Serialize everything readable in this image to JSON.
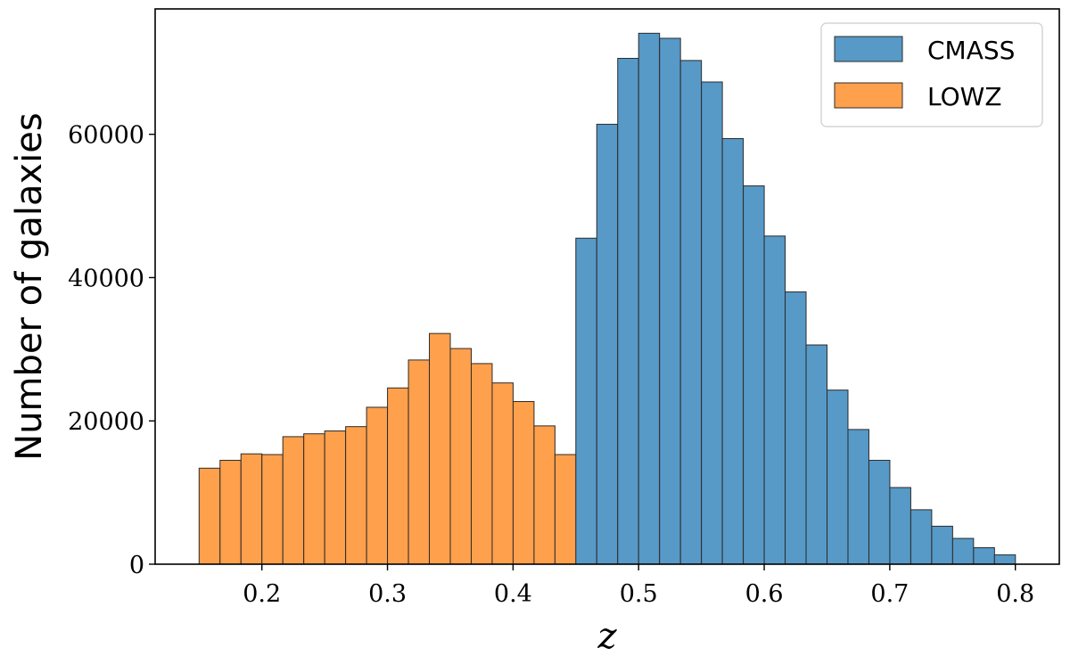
{
  "chart_data": {
    "type": "bar",
    "xlabel": "z",
    "ylabel": "Number of galaxies",
    "xlim": [
      0.115,
      0.835
    ],
    "ylim": [
      0,
      77500
    ],
    "xticks": [
      "0.2",
      "0.3",
      "0.4",
      "0.5",
      "0.6",
      "0.7",
      "0.8"
    ],
    "xtick_values": [
      0.2,
      0.3,
      0.4,
      0.5,
      0.6,
      0.7,
      0.8
    ],
    "yticks": [
      "0",
      "20000",
      "40000",
      "60000"
    ],
    "ytick_values": [
      0,
      20000,
      40000,
      60000
    ],
    "bin_width": 0.01667,
    "grid": false,
    "legend_position": "top-right",
    "series": [
      {
        "name": "CMASS",
        "color": "#5799c7",
        "bin_start": 0.45,
        "values": [
          45500,
          61400,
          70600,
          74100,
          73400,
          70300,
          67300,
          59400,
          52800,
          45800,
          38000,
          30600,
          24300,
          18800,
          14500,
          10700,
          7600,
          5300,
          3600,
          2300,
          1300
        ]
      },
      {
        "name": "LOWZ",
        "color": "#ffa04c",
        "bin_start": 0.15,
        "values": [
          13400,
          14500,
          15400,
          15300,
          17800,
          18200,
          18600,
          19200,
          21900,
          24600,
          28500,
          32200,
          30100,
          28000,
          25300,
          22700,
          19300,
          15300
        ]
      }
    ]
  }
}
